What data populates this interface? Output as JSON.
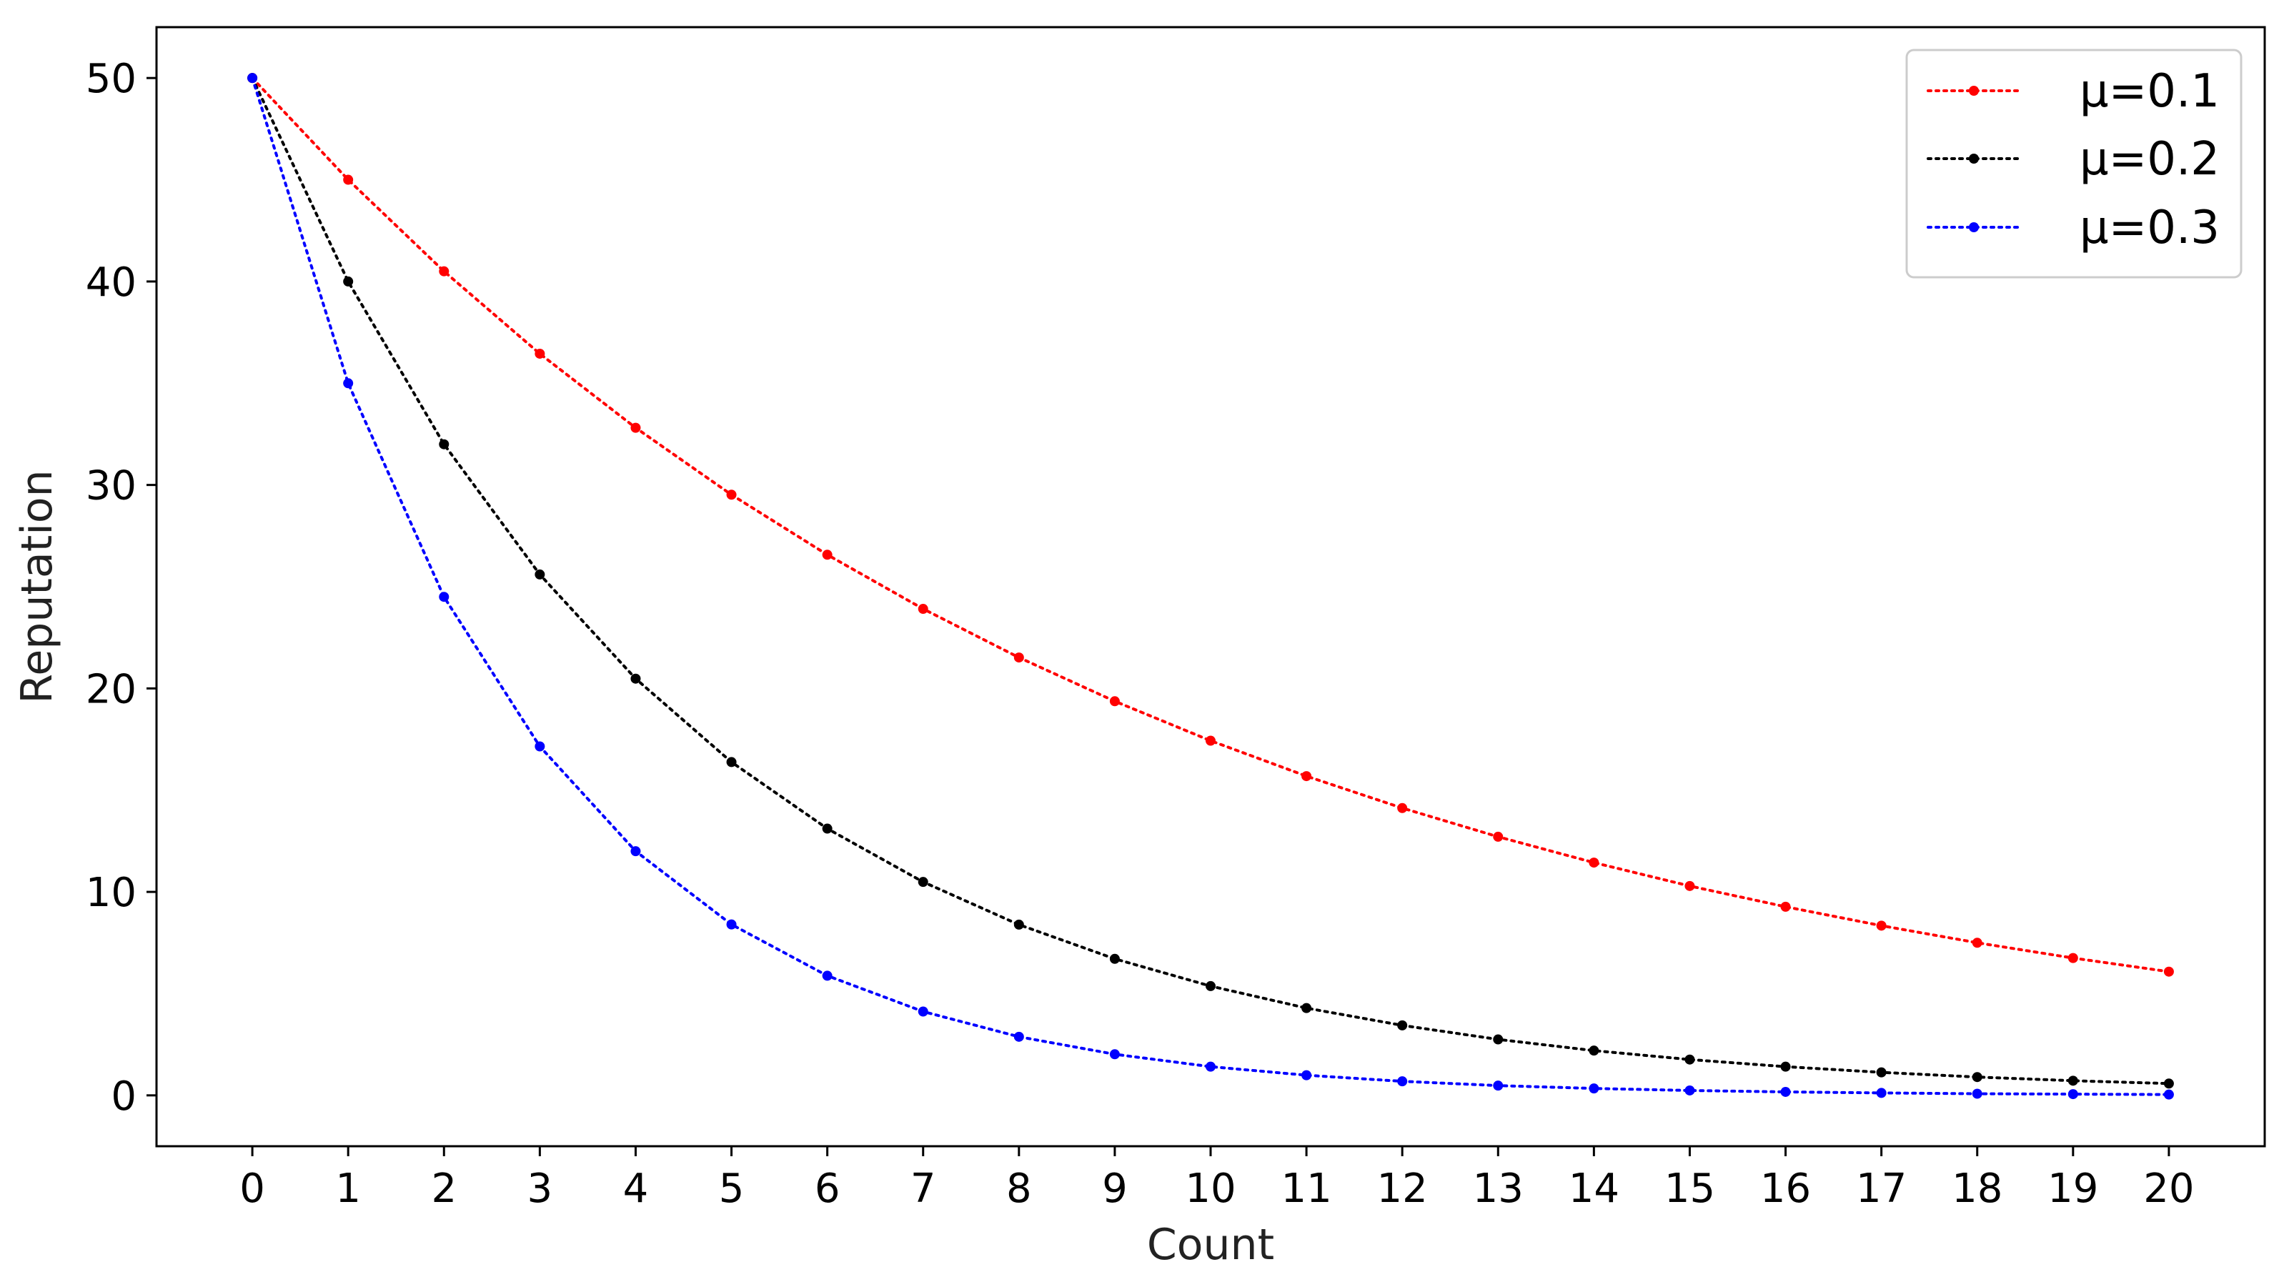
{
  "chart_data": {
    "type": "line",
    "title": "",
    "xlabel": "Count",
    "ylabel": "Reputation",
    "x": [
      0,
      1,
      2,
      3,
      4,
      5,
      6,
      7,
      8,
      9,
      10,
      11,
      12,
      13,
      14,
      15,
      16,
      17,
      18,
      19,
      20
    ],
    "xticks": [
      "0",
      "1",
      "2",
      "3",
      "4",
      "5",
      "6",
      "7",
      "8",
      "9",
      "10",
      "11",
      "12",
      "13",
      "14",
      "15",
      "16",
      "17",
      "18",
      "19",
      "20"
    ],
    "yticks": [
      0,
      10,
      20,
      30,
      40,
      50
    ],
    "xlim": [
      -1,
      21
    ],
    "ylim": [
      -2.5,
      52.5
    ],
    "grid": false,
    "legend_position": "top-right",
    "series": [
      {
        "name": "μ=0.1",
        "color": "#ff0000",
        "line_style": "dotted",
        "marker": "dot",
        "values": [
          50,
          45,
          40.5,
          36.45,
          32.81,
          29.52,
          26.57,
          23.91,
          21.52,
          19.37,
          17.43,
          15.69,
          14.12,
          12.71,
          11.44,
          10.29,
          9.27,
          8.34,
          7.5,
          6.75,
          6.08
        ]
      },
      {
        "name": "μ=0.2",
        "color": "#000000",
        "line_style": "dotted",
        "marker": "dot",
        "values": [
          50,
          40,
          32,
          25.6,
          20.48,
          16.38,
          13.11,
          10.49,
          8.39,
          6.71,
          5.37,
          4.29,
          3.44,
          2.75,
          2.2,
          1.76,
          1.41,
          1.13,
          0.9,
          0.72,
          0.58
        ]
      },
      {
        "name": "μ=0.3",
        "color": "#0000ff",
        "line_style": "dotted",
        "marker": "dot",
        "values": [
          50,
          35,
          24.5,
          17.15,
          12.0,
          8.4,
          5.88,
          4.12,
          2.88,
          2.02,
          1.41,
          0.99,
          0.69,
          0.48,
          0.34,
          0.24,
          0.17,
          0.12,
          0.08,
          0.06,
          0.04
        ]
      }
    ]
  }
}
